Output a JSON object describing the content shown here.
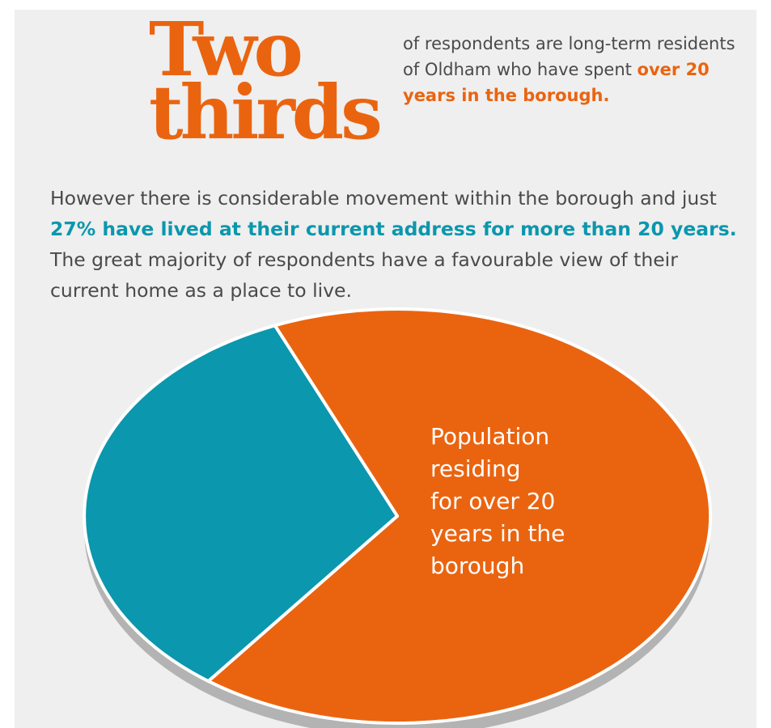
{
  "headline": {
    "line1": "Two",
    "line2": "thirds"
  },
  "intro": {
    "before": "of respondents are long-term residents of Oldham who have spent ",
    "highlight": "over 20 years in the borough."
  },
  "body": {
    "before": "However there is considerable movement within the borough and just ",
    "highlight": "27% have lived at their current address for more than 20 years.",
    "after": " The great majority of respondents have a favourable view of their current home as a place to live."
  },
  "colors": {
    "accent_orange": "#ea6410",
    "accent_teal": "#0b97ad",
    "text": "#4a4a4a",
    "background": "#efefef"
  },
  "chart_data": {
    "type": "pie",
    "title": "",
    "slices": [
      {
        "label": "Population residing for over 20 years in the borough",
        "value": 66.7,
        "color": "#ea6410"
      },
      {
        "label": "",
        "value": 33.3,
        "color": "#0b97ad"
      }
    ]
  }
}
